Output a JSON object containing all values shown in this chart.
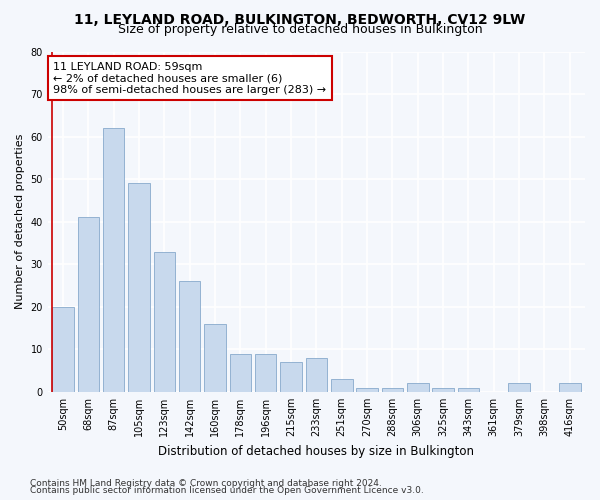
{
  "title1": "11, LEYLAND ROAD, BULKINGTON, BEDWORTH, CV12 9LW",
  "title2": "Size of property relative to detached houses in Bulkington",
  "xlabel": "Distribution of detached houses by size in Bulkington",
  "ylabel": "Number of detached properties",
  "categories": [
    "50sqm",
    "68sqm",
    "87sqm",
    "105sqm",
    "123sqm",
    "142sqm",
    "160sqm",
    "178sqm",
    "196sqm",
    "215sqm",
    "233sqm",
    "251sqm",
    "270sqm",
    "288sqm",
    "306sqm",
    "325sqm",
    "343sqm",
    "361sqm",
    "379sqm",
    "398sqm",
    "416sqm"
  ],
  "values": [
    20,
    41,
    62,
    49,
    33,
    26,
    16,
    9,
    9,
    7,
    8,
    3,
    1,
    1,
    2,
    1,
    1,
    0,
    2,
    0,
    2
  ],
  "bar_color": "#c8d9ed",
  "bar_edge_color": "#88aacc",
  "vline_color": "#cc0000",
  "annotation_text": "11 LEYLAND ROAD: 59sqm\n← 2% of detached houses are smaller (6)\n98% of semi-detached houses are larger (283) →",
  "annotation_box_color": "#ffffff",
  "annotation_box_edge": "#cc0000",
  "ylim": [
    0,
    80
  ],
  "yticks": [
    0,
    10,
    20,
    30,
    40,
    50,
    60,
    70,
    80
  ],
  "footer1": "Contains HM Land Registry data © Crown copyright and database right 2024.",
  "footer2": "Contains public sector information licensed under the Open Government Licence v3.0.",
  "bg_color": "#f4f7fc",
  "plot_bg_color": "#f4f7fc",
  "grid_color": "#ffffff",
  "title1_fontsize": 10,
  "title2_fontsize": 9,
  "xlabel_fontsize": 8.5,
  "ylabel_fontsize": 8,
  "tick_fontsize": 7,
  "annotation_fontsize": 8,
  "footer_fontsize": 6.5
}
